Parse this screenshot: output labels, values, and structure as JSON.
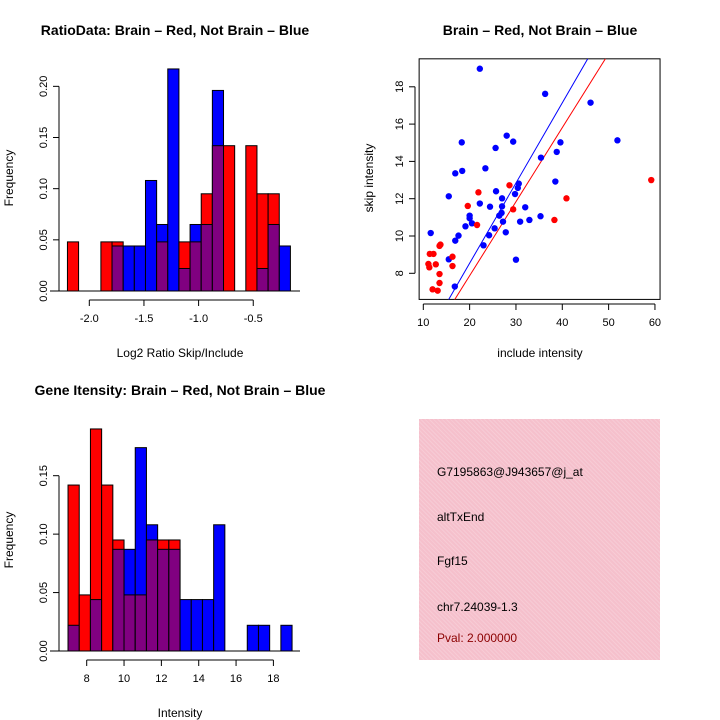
{
  "colors": {
    "brain": "#ff0000",
    "not_brain": "#0000ff",
    "overlap": "#800080",
    "panel": "#f5c0cc",
    "pval": "#8b0000"
  },
  "chart_data": [
    {
      "type": "bar",
      "title": "RatioData: Brain – Red, Not Brain – Blue",
      "xlabel": "Log2 Ratio Skip/Include",
      "ylabel": "Frequency",
      "bin_start": -2.2,
      "bin_width": 0.102,
      "xticks": [
        "-2.0",
        "-1.5",
        "-1.0",
        "-0.5"
      ],
      "xtick_values": [
        -2.0,
        -1.5,
        -1.0,
        -0.5
      ],
      "yticks": [
        "0.00",
        "0.05",
        "0.10",
        "0.15",
        "0.20"
      ],
      "ytick_values": [
        0,
        0.05,
        0.1,
        0.15,
        0.2
      ],
      "series": [
        {
          "name": "Brain",
          "color": "red",
          "values": [
            0.048,
            0,
            0,
            0.048,
            0.048,
            0,
            0,
            0,
            0.048,
            0,
            0.048,
            0.048,
            0.095,
            0.142,
            0.142,
            0,
            0.142,
            0.095,
            0.095,
            0
          ]
        },
        {
          "name": "Not Brain",
          "color": "blue",
          "values": [
            0,
            0,
            0,
            0,
            0.044,
            0.044,
            0.044,
            0.108,
            0.065,
            0.217,
            0.022,
            0.065,
            0.065,
            0.196,
            0,
            0,
            0,
            0.022,
            0.065,
            0.044
          ]
        }
      ]
    },
    {
      "type": "scatter",
      "title": "Brain – Red, Not Brain – Blue",
      "xlabel": "include intensity",
      "ylabel": "skip intensity",
      "xlim": [
        9.1,
        61.1
      ],
      "ylim": [
        6.6,
        19.5
      ],
      "xticks": [
        "10",
        "20",
        "30",
        "40",
        "50",
        "60"
      ],
      "xtick_values": [
        10,
        20,
        30,
        40,
        50,
        60
      ],
      "yticks": [
        "8",
        "10",
        "12",
        "14",
        "16",
        "18"
      ],
      "ytick_values": [
        8,
        10,
        12,
        14,
        16,
        18
      ],
      "series": [
        {
          "name": "Not Brain",
          "color": "blue",
          "points": [
            [
              22.2,
              18.97
            ],
            [
              36.3,
              17.62
            ],
            [
              46.1,
              17.15
            ],
            [
              51.9,
              15.13
            ],
            [
              28.0,
              15.38
            ],
            [
              29.4,
              15.06
            ],
            [
              18.3,
              15.02
            ],
            [
              25.6,
              14.72
            ],
            [
              39.6,
              15.02
            ],
            [
              38.8,
              14.51
            ],
            [
              35.4,
              14.2
            ],
            [
              23.4,
              13.63
            ],
            [
              18.4,
              13.49
            ],
            [
              16.9,
              13.36
            ],
            [
              38.5,
              12.92
            ],
            [
              30.6,
              12.81
            ],
            [
              30.4,
              12.58
            ],
            [
              29.8,
              12.25
            ],
            [
              25.7,
              12.4
            ],
            [
              15.5,
              12.13
            ],
            [
              27.0,
              12.02
            ],
            [
              22.2,
              11.74
            ],
            [
              24.4,
              11.57
            ],
            [
              27.0,
              11.59
            ],
            [
              32.0,
              11.54
            ],
            [
              26.9,
              11.24
            ],
            [
              26.4,
              11.09
            ],
            [
              20.0,
              11.09
            ],
            [
              20.0,
              10.95
            ],
            [
              20.5,
              10.68
            ],
            [
              27.2,
              10.77
            ],
            [
              19.1,
              10.52
            ],
            [
              35.3,
              11.06
            ],
            [
              32.9,
              10.86
            ],
            [
              30.9,
              10.77
            ],
            [
              25.4,
              10.41
            ],
            [
              27.8,
              10.2
            ],
            [
              24.2,
              10.04
            ],
            [
              17.6,
              10.02
            ],
            [
              16.9,
              9.75
            ],
            [
              23.0,
              9.5
            ],
            [
              11.6,
              10.16
            ],
            [
              15.5,
              8.75
            ],
            [
              30.0,
              8.73
            ],
            [
              16.8,
              7.29
            ]
          ],
          "fit": {
            "slope": 0.43,
            "intercept": -0.06
          }
        },
        {
          "name": "Brain",
          "color": "red",
          "points": [
            [
              59.2,
              13.0
            ],
            [
              40.9,
              12.02
            ],
            [
              28.6,
              12.72
            ],
            [
              21.9,
              12.34
            ],
            [
              19.6,
              11.61
            ],
            [
              29.4,
              11.43
            ],
            [
              38.3,
              10.86
            ],
            [
              21.6,
              10.59
            ],
            [
              13.7,
              9.54
            ],
            [
              13.5,
              9.47
            ],
            [
              11.4,
              9.04
            ],
            [
              12.2,
              9.04
            ],
            [
              16.3,
              8.89
            ],
            [
              12.7,
              8.48
            ],
            [
              11.1,
              8.5
            ],
            [
              11.3,
              8.32
            ],
            [
              16.3,
              8.39
            ],
            [
              13.5,
              7.96
            ],
            [
              13.5,
              7.48
            ],
            [
              12.0,
              7.14
            ],
            [
              13.1,
              7.07
            ]
          ],
          "fit": {
            "slope": 0.397,
            "intercept": -0.07
          }
        }
      ]
    },
    {
      "type": "bar",
      "title": "Gene Itensity: Brain – Red, Not Brain – Blue",
      "xlabel": "Intensity",
      "ylabel": "Frequency",
      "bin_start": 7.0,
      "bin_width": 0.6,
      "xticks": [
        "8",
        "10",
        "12",
        "14",
        "16",
        "18"
      ],
      "xtick_values": [
        8,
        10,
        12,
        14,
        16,
        18
      ],
      "yticks": [
        "0.00",
        "0.05",
        "0.10",
        "0.15"
      ],
      "ytick_values": [
        0,
        0.05,
        0.1,
        0.15
      ],
      "series": [
        {
          "name": "Brain",
          "color": "red",
          "values": [
            0.142,
            0.048,
            0.19,
            0.142,
            0.095,
            0.048,
            0.048,
            0.095,
            0.095,
            0.095,
            0,
            0,
            0,
            0,
            0,
            0,
            0,
            0,
            0,
            0
          ]
        },
        {
          "name": "Not Brain",
          "color": "blue",
          "values": [
            0.022,
            0,
            0.044,
            0,
            0.087,
            0.087,
            0.174,
            0.108,
            0.087,
            0.087,
            0.044,
            0.044,
            0.044,
            0.108,
            0,
            0,
            0.022,
            0.022,
            0,
            0.022
          ]
        }
      ]
    }
  ],
  "info_panel": {
    "probe_id": "G7195863@J943657@j_at",
    "event_type": "altTxEnd",
    "gene": "Fgf15",
    "location": "chr7.24039-1.3",
    "pval": "Pval: 2.000000"
  }
}
